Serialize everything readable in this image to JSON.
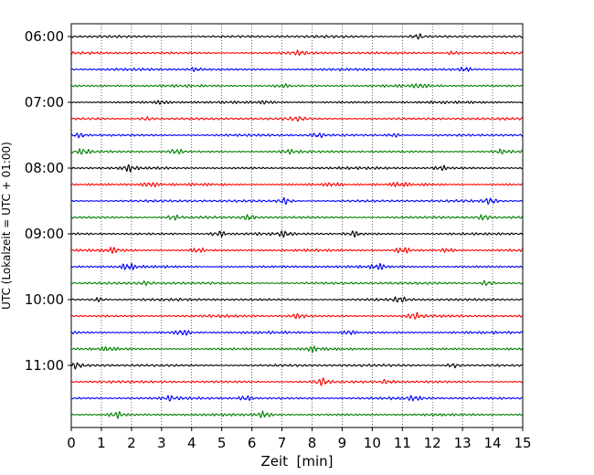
{
  "chart_data": {
    "type": "line",
    "plot_kind": "helicorder",
    "xlabel": "Zeit  [min]",
    "ylabel": "UTC (Lokalzeit = UTC + 01:00)",
    "xlim": [
      0,
      15
    ],
    "x_ticks": [
      "0",
      "1",
      "2",
      "3",
      "4",
      "5",
      "6",
      "7",
      "8",
      "9",
      "10",
      "11",
      "12",
      "13",
      "14",
      "15"
    ],
    "y_ticks": [
      {
        "label": "06:00",
        "trace": 0
      },
      {
        "label": "07:00",
        "trace": 4
      },
      {
        "label": "08:00",
        "trace": 8
      },
      {
        "label": "09:00",
        "trace": 12
      },
      {
        "label": "10:00",
        "trace": 16
      },
      {
        "label": "11:00",
        "trace": 20
      }
    ],
    "trace_count": 24,
    "trace_minutes": 15,
    "trace_colors": [
      "#000000",
      "#ff0000",
      "#0000ff",
      "#008000"
    ],
    "grid": "vertical dotted",
    "series": [
      {
        "trace": 0,
        "bursts": [
          {
            "t": 11.5,
            "a": 1.0
          }
        ]
      },
      {
        "trace": 1,
        "bursts": [
          {
            "t": 7.6,
            "a": 0.8
          },
          {
            "t": 12.7,
            "a": 0.8
          }
        ]
      },
      {
        "trace": 2,
        "bursts": [
          {
            "t": 4.1,
            "a": 0.8
          },
          {
            "t": 13.1,
            "a": 0.7
          }
        ]
      },
      {
        "trace": 3,
        "bursts": [
          {
            "t": 7.0,
            "a": 0.7
          },
          {
            "t": 11.6,
            "a": 0.9
          }
        ]
      },
      {
        "trace": 4,
        "bursts": [
          {
            "t": 3.0,
            "a": 0.7
          },
          {
            "t": 6.5,
            "a": 0.6
          }
        ]
      },
      {
        "trace": 5,
        "bursts": [
          {
            "t": 2.5,
            "a": 0.7
          },
          {
            "t": 7.5,
            "a": 0.7
          }
        ]
      },
      {
        "trace": 6,
        "bursts": [
          {
            "t": 0.3,
            "a": 0.8
          },
          {
            "t": 8.2,
            "a": 1.0
          },
          {
            "t": 10.7,
            "a": 0.8
          }
        ]
      },
      {
        "trace": 7,
        "bursts": [
          {
            "t": 0.4,
            "a": 0.8
          },
          {
            "t": 3.5,
            "a": 0.9
          },
          {
            "t": 7.2,
            "a": 0.8
          },
          {
            "t": 14.3,
            "a": 0.8
          }
        ]
      },
      {
        "trace": 8,
        "bursts": [
          {
            "t": 1.9,
            "a": 1.1
          },
          {
            "t": 12.3,
            "a": 0.8
          }
        ]
      },
      {
        "trace": 9,
        "bursts": [
          {
            "t": 2.6,
            "a": 1.2
          },
          {
            "t": 8.7,
            "a": 0.9
          },
          {
            "t": 10.9,
            "a": 0.9
          }
        ]
      },
      {
        "trace": 10,
        "bursts": [
          {
            "t": 7.1,
            "a": 1.2
          },
          {
            "t": 13.9,
            "a": 1.3
          }
        ]
      },
      {
        "trace": 11,
        "bursts": [
          {
            "t": 3.4,
            "a": 1.0
          },
          {
            "t": 5.9,
            "a": 1.1
          },
          {
            "t": 13.7,
            "a": 0.9
          }
        ]
      },
      {
        "trace": 12,
        "bursts": [
          {
            "t": 4.9,
            "a": 1.2
          },
          {
            "t": 7.1,
            "a": 1.1
          },
          {
            "t": 9.4,
            "a": 1.0
          }
        ]
      },
      {
        "trace": 13,
        "bursts": [
          {
            "t": 1.4,
            "a": 1.0
          },
          {
            "t": 4.2,
            "a": 1.0
          },
          {
            "t": 11.0,
            "a": 1.3
          },
          {
            "t": 12.5,
            "a": 0.9
          }
        ]
      },
      {
        "trace": 14,
        "bursts": [
          {
            "t": 1.9,
            "a": 1.4
          },
          {
            "t": 10.2,
            "a": 1.0
          }
        ]
      },
      {
        "trace": 15,
        "bursts": [
          {
            "t": 2.5,
            "a": 0.7
          },
          {
            "t": 13.8,
            "a": 1.0
          }
        ]
      },
      {
        "trace": 16,
        "bursts": [
          {
            "t": 0.9,
            "a": 0.9
          },
          {
            "t": 10.9,
            "a": 1.2
          }
        ]
      },
      {
        "trace": 17,
        "bursts": [
          {
            "t": 7.5,
            "a": 1.1
          },
          {
            "t": 11.4,
            "a": 1.1
          }
        ]
      },
      {
        "trace": 18,
        "bursts": [
          {
            "t": 3.7,
            "a": 1.3
          },
          {
            "t": 9.2,
            "a": 1.1
          }
        ]
      },
      {
        "trace": 19,
        "bursts": [
          {
            "t": 1.2,
            "a": 0.6
          },
          {
            "t": 8.0,
            "a": 0.8
          }
        ]
      },
      {
        "trace": 20,
        "bursts": [
          {
            "t": 0.1,
            "a": 1.2
          },
          {
            "t": 12.7,
            "a": 0.9
          }
        ]
      },
      {
        "trace": 21,
        "bursts": [
          {
            "t": 8.3,
            "a": 1.5
          },
          {
            "t": 10.5,
            "a": 0.7
          }
        ]
      },
      {
        "trace": 22,
        "bursts": [
          {
            "t": 3.3,
            "a": 0.9
          },
          {
            "t": 5.8,
            "a": 1.0
          },
          {
            "t": 11.4,
            "a": 0.9
          }
        ]
      },
      {
        "trace": 23,
        "bursts": [
          {
            "t": 1.5,
            "a": 1.2
          },
          {
            "t": 6.4,
            "a": 1.3
          }
        ]
      }
    ]
  }
}
